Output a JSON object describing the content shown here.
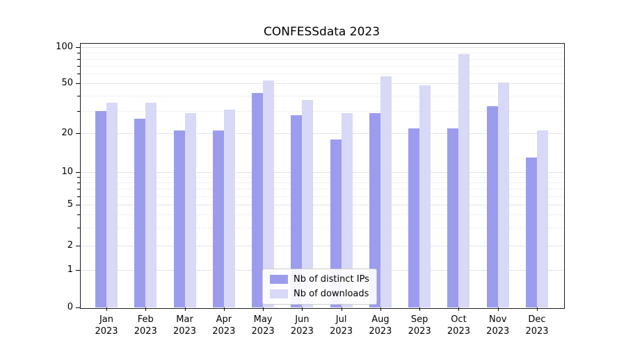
{
  "chart_data": {
    "type": "bar",
    "title": "CONFESSdata 2023",
    "categories": [
      "Jan 2023",
      "Feb 2023",
      "Mar 2023",
      "Apr 2023",
      "May 2023",
      "Jun 2023",
      "Jul 2023",
      "Aug 2023",
      "Sep 2023",
      "Oct 2023",
      "Nov 2023",
      "Dec 2023"
    ],
    "series": [
      {
        "name": "Nb of distinct IPs",
        "color": "#9c9cee",
        "values": [
          30,
          26,
          21,
          21,
          42,
          28,
          18,
          29,
          22,
          22,
          33,
          13
        ]
      },
      {
        "name": "Nb of downloads",
        "color": "#d8d8f7",
        "values": [
          35,
          35,
          29,
          31,
          53,
          37,
          29,
          57,
          48,
          88,
          51,
          21
        ]
      }
    ],
    "xlabel": "",
    "ylabel": "",
    "yscale": "symlog",
    "yticks": [
      0,
      1,
      2,
      5,
      10,
      20,
      50,
      100
    ],
    "yticks_minor": [
      3,
      4,
      6,
      7,
      8,
      9,
      30,
      40,
      60,
      70,
      80,
      90
    ],
    "ylim": [
      0,
      100
    ],
    "grid": true,
    "legend_position": "lower center"
  }
}
